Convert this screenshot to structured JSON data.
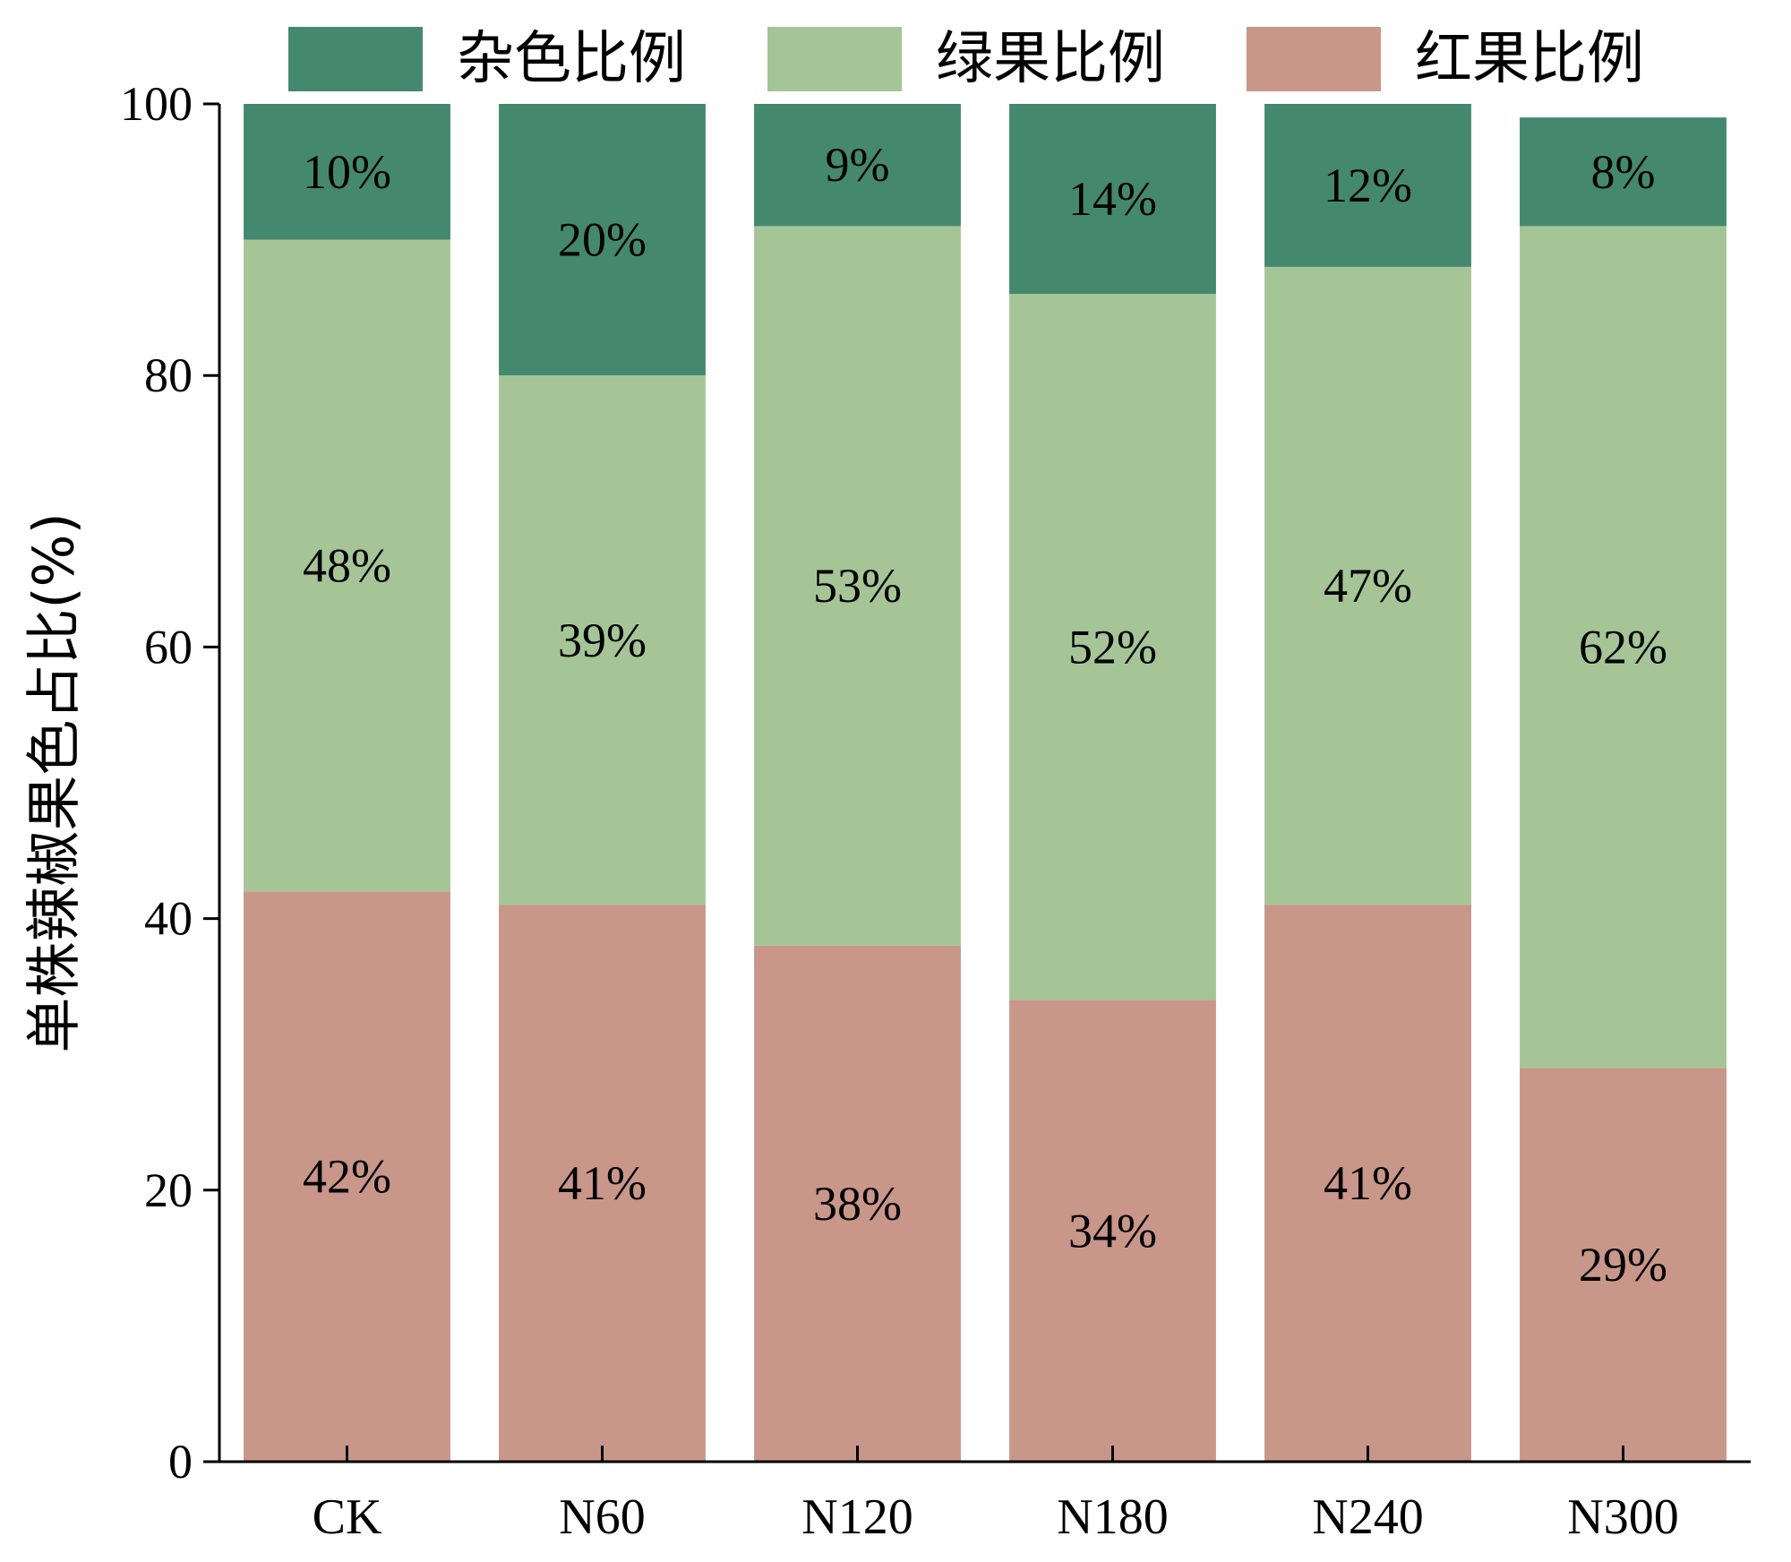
{
  "chart_data": {
    "type": "bar",
    "stacked": true,
    "categories": [
      "CK",
      "N60",
      "N120",
      "N180",
      "N240",
      "N300"
    ],
    "series": [
      {
        "name": "红果比例",
        "color": "#c9968a",
        "values": [
          42,
          41,
          38,
          34,
          41,
          29
        ],
        "labels": [
          "42%",
          "41%",
          "38%",
          "34%",
          "41%",
          "29%"
        ]
      },
      {
        "name": "绿果比例",
        "color": "#a5c597",
        "values": [
          48,
          39,
          53,
          52,
          47,
          62
        ],
        "labels": [
          "48%",
          "39%",
          "53%",
          "52%",
          "47%",
          "62%"
        ]
      },
      {
        "name": "杂色比例",
        "color": "#458870",
        "values": [
          10,
          20,
          9,
          14,
          12,
          8
        ],
        "labels": [
          "10%",
          "20%",
          "9%",
          "14%",
          "12%",
          "8%"
        ]
      }
    ],
    "legend_order": [
      2,
      1,
      0
    ],
    "legend_position": "top",
    "ylabel": "单株辣椒果色占比(%)",
    "xlabel": "",
    "ylim": [
      0,
      100
    ],
    "yticks": [
      "0",
      "20",
      "40",
      "60",
      "80",
      "100"
    ],
    "grid": false
  }
}
